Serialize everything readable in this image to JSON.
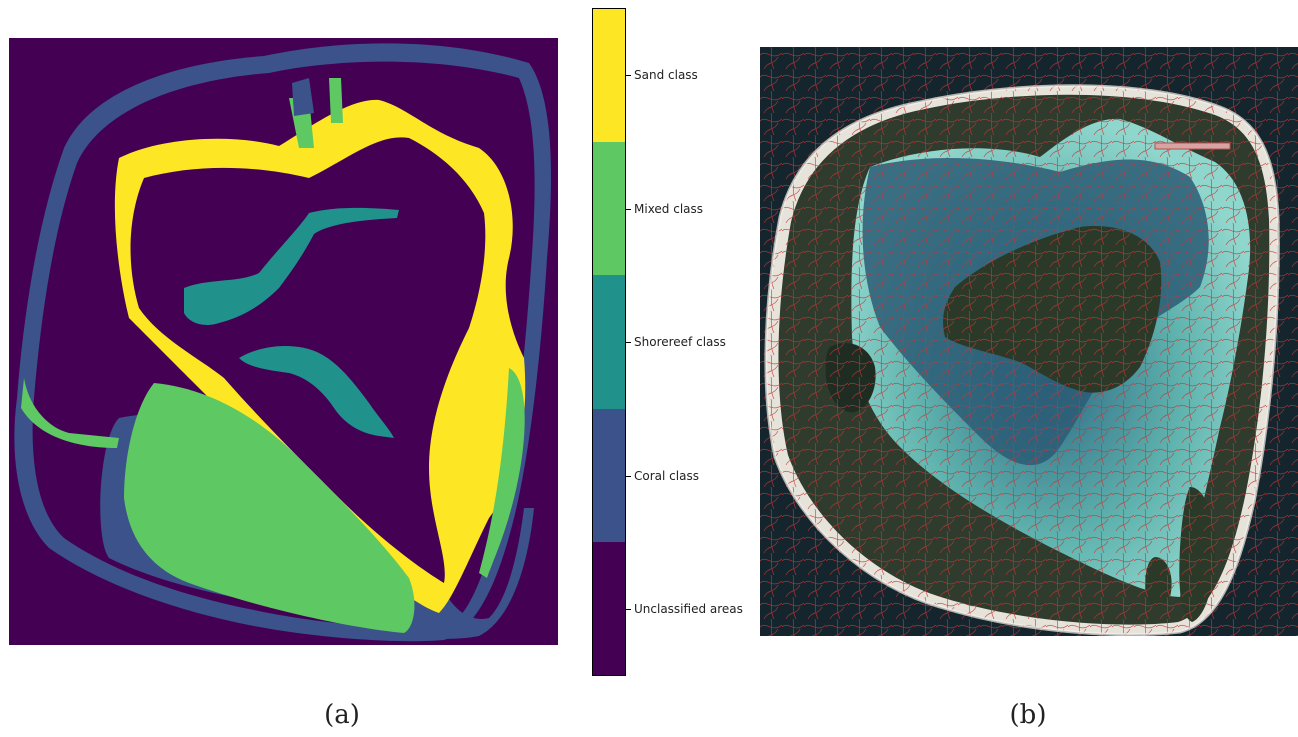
{
  "figure": {
    "panels": [
      {
        "id": "a",
        "caption": "(a)"
      },
      {
        "id": "b",
        "caption": "(b)"
      }
    ]
  },
  "legend": {
    "classes": [
      {
        "label": "Sand class",
        "color": "#fde725"
      },
      {
        "label": "Mixed class",
        "color": "#5ec962"
      },
      {
        "label": "Shorereef class",
        "color": "#21918c"
      },
      {
        "label": "Coral class",
        "color": "#3b528b"
      },
      {
        "label": "Unclassified areas",
        "color": "#440154"
      }
    ]
  },
  "colors": {
    "background": "#440154",
    "ocean_dark": "#15252e",
    "land": "#2f3b2d",
    "lagoon": "#7fc7c0",
    "deep_lagoon": "#2c5c76",
    "segment_lines": "#d03a3a",
    "reef_rim": "#e6e3da"
  }
}
